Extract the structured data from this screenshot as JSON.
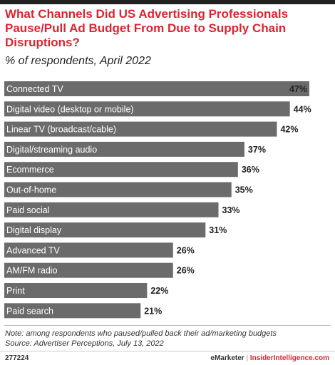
{
  "title": "What Channels Did US Advertising Professionals Pause/Pull Ad Budget From Due to Supply Chain Disruptions?",
  "subtitle": "% of respondents, April 2022",
  "note": "Note: among respondents who paused/pulled back their ad/marketing budgets",
  "source": "Source: Advertiser Perceptions, July 13, 2022",
  "footer": {
    "id": "277224",
    "brand_emarketer": "eMarketer",
    "separator": "|",
    "brand_insider": "InsiderIntelligence.com"
  },
  "colors": {
    "bar": "#6b6b6b",
    "accent": "#dc2431",
    "text": "#222222"
  },
  "chart_data": {
    "type": "bar",
    "orientation": "horizontal",
    "categories": [
      "Connected TV",
      "Digital video (desktop or mobile)",
      "Linear TV (broadcast/cable)",
      "Digital/streaming audio",
      "Ecommerce",
      "Out-of-home",
      "Paid social",
      "Digital display",
      "Advanced TV",
      "AM/FM radio",
      "Print",
      "Paid search"
    ],
    "values": [
      47,
      44,
      42,
      37,
      36,
      35,
      33,
      31,
      26,
      26,
      22,
      21
    ],
    "value_labels": [
      "47%",
      "44%",
      "42%",
      "37%",
      "36%",
      "35%",
      "33%",
      "31%",
      "26%",
      "26%",
      "22%",
      "21%"
    ],
    "xlim": [
      0,
      47
    ],
    "title": "What Channels Did US Advertising Professionals Pause/Pull Ad Budget From Due to Supply Chain Disruptions?",
    "subtitle": "% of respondents, April 2022",
    "grid": false,
    "legend": "none"
  }
}
